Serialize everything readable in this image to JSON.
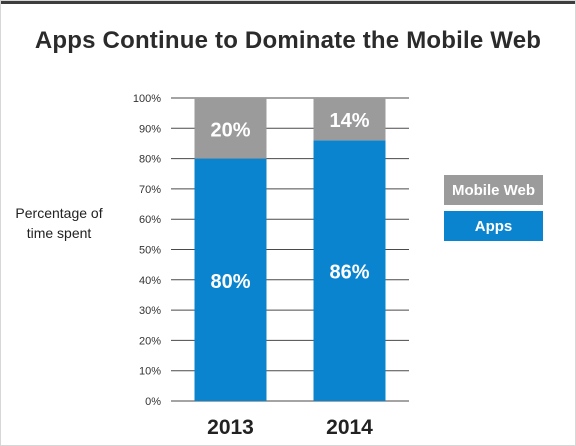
{
  "chart_data": {
    "type": "bar",
    "stacked": true,
    "title": "Apps Continue to Dominate the Mobile Web",
    "ylabel": "Percentage of time spent",
    "categories": [
      "2013",
      "2014"
    ],
    "series": [
      {
        "name": "Apps",
        "values": [
          80,
          86
        ],
        "labels": [
          "80%",
          "86%"
        ],
        "color": "#0b84d0"
      },
      {
        "name": "Mobile Web",
        "values": [
          20,
          14
        ],
        "labels": [
          "20%",
          "14%"
        ],
        "color": "#9b9b9b"
      }
    ],
    "yticks": [
      "0%",
      "10%",
      "20%",
      "30%",
      "40%",
      "50%",
      "60%",
      "70%",
      "80%",
      "90%",
      "100%"
    ],
    "ylim": [
      0,
      100
    ],
    "grid": true,
    "legend": {
      "position": "right",
      "entries": [
        {
          "label": "Mobile Web",
          "color": "#9b9b9b"
        },
        {
          "label": "Apps",
          "color": "#0b84d0"
        }
      ]
    }
  }
}
